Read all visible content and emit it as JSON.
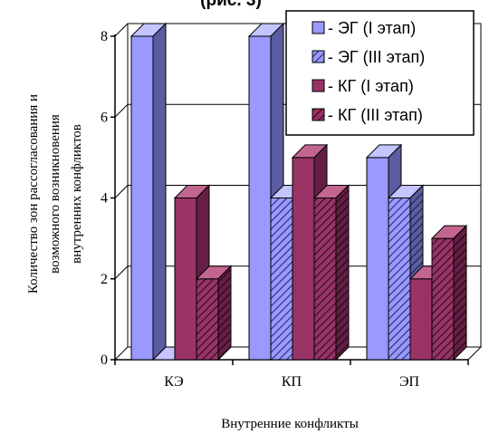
{
  "chart_data": {
    "type": "bar",
    "title_fragment": "(рис. 3)",
    "categories": [
      "КЭ",
      "КП",
      "ЭП"
    ],
    "xlabel": "Внутренние конфликты",
    "ylabel_lines": [
      "Количество зон рассогласования и",
      "возможного возникновения",
      "внутренних конфликтов"
    ],
    "yticks": [
      "0",
      "2",
      "4",
      "6",
      "8"
    ],
    "ylim": [
      0,
      8
    ],
    "grid": true,
    "legend_position": "top-right",
    "series": [
      {
        "name": "- ЭГ (I этап)",
        "values": [
          8,
          8,
          5
        ],
        "color": "#9999ff",
        "pattern": "solid"
      },
      {
        "name": "- ЭГ (III этап)",
        "values": [
          0,
          4,
          4
        ],
        "color": "#9999ff",
        "pattern": "hatched"
      },
      {
        "name": "- КГ (I этап)",
        "values": [
          4,
          5,
          2
        ],
        "color": "#993366",
        "pattern": "solid"
      },
      {
        "name": "- КГ (III этап)",
        "values": [
          2,
          4,
          3
        ],
        "color": "#993366",
        "pattern": "hatched"
      }
    ]
  }
}
